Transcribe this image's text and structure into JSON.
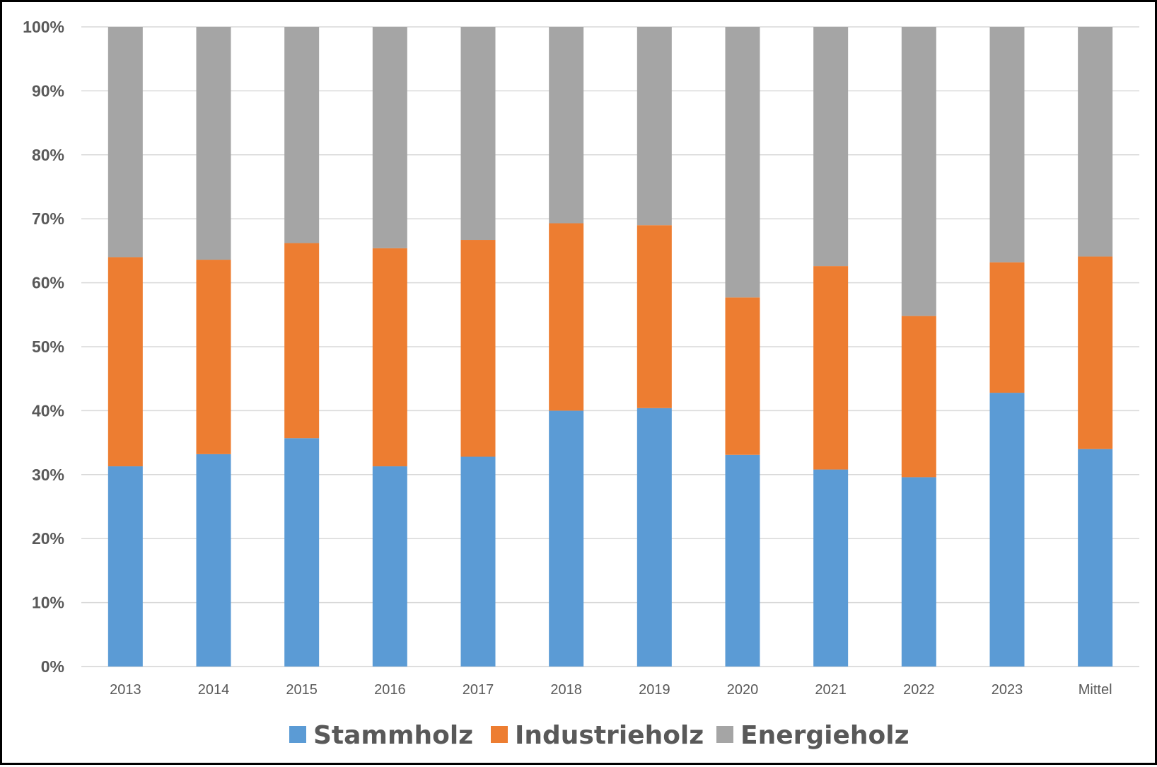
{
  "colors": {
    "Stammholz": "#5b9bd5",
    "Industrieholz": "#ed7d31",
    "Energieholz": "#a5a5a5",
    "gridline": "#d9d9d9",
    "axis_text": "#595959"
  },
  "chart_data": {
    "type": "bar",
    "stacked": true,
    "percent_stacked": true,
    "title": "",
    "xlabel": "",
    "ylabel": "",
    "categories": [
      "2013",
      "2014",
      "2015",
      "2016",
      "2017",
      "2018",
      "2019",
      "2020",
      "2021",
      "2022",
      "2023",
      "Mittel"
    ],
    "series": [
      {
        "name": "Stammholz",
        "values": [
          31.3,
          33.2,
          35.7,
          31.3,
          32.8,
          40.0,
          40.4,
          33.1,
          30.8,
          29.6,
          42.8,
          34.0
        ]
      },
      {
        "name": "Industrieholz",
        "values": [
          32.7,
          30.4,
          30.5,
          34.1,
          33.9,
          29.3,
          28.6,
          24.6,
          31.8,
          25.2,
          20.4,
          30.1
        ]
      },
      {
        "name": "Energieholz",
        "values": [
          36.0,
          36.4,
          33.8,
          34.6,
          33.3,
          30.7,
          31.0,
          42.3,
          37.4,
          45.2,
          36.8,
          35.9
        ]
      }
    ],
    "ylim": [
      0,
      100
    ],
    "yticks": [
      0,
      10,
      20,
      30,
      40,
      50,
      60,
      70,
      80,
      90,
      100
    ],
    "ytick_labels": [
      "0%",
      "10%",
      "20%",
      "30%",
      "40%",
      "50%",
      "60%",
      "70%",
      "80%",
      "90%",
      "100%"
    ],
    "grid": true,
    "legend_position": "bottom"
  }
}
